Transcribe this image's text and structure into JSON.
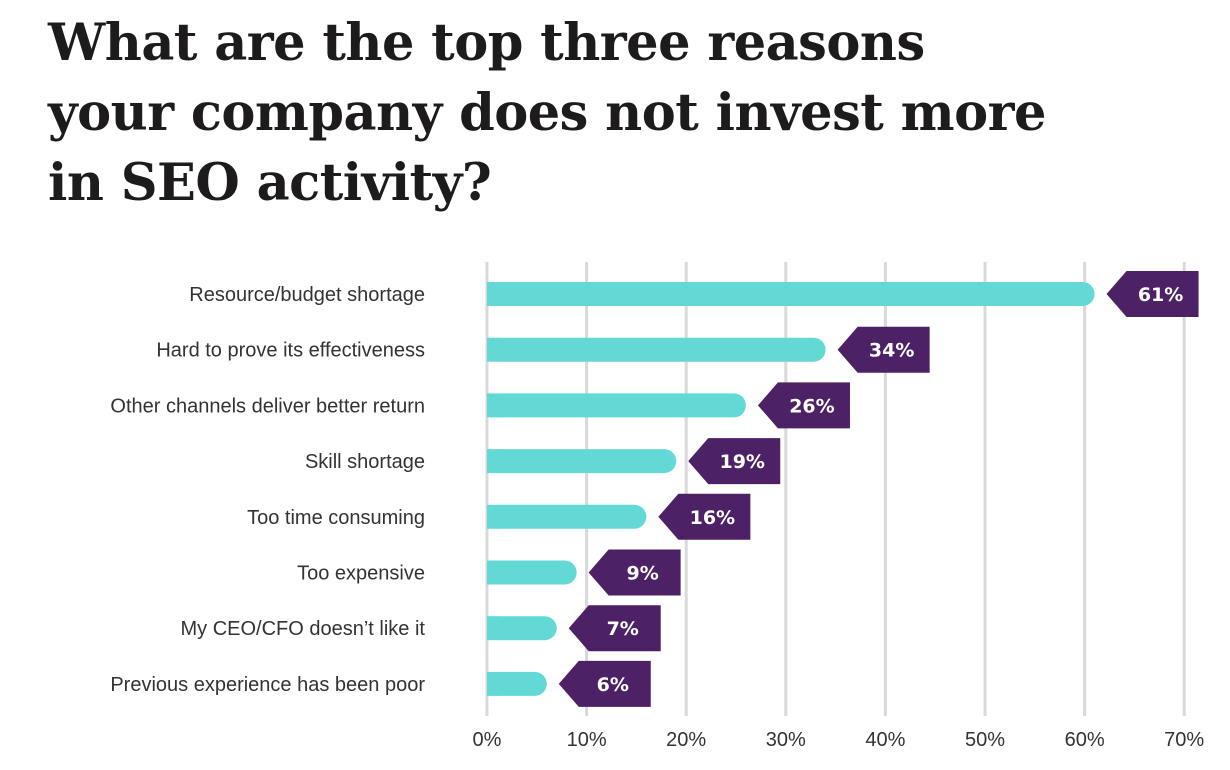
{
  "title": [
    "What are the top three reasons",
    "your company does not invest more",
    "in SEO activity?"
  ],
  "colors": {
    "bar": "#63d9d6",
    "label_bg": "#4d2166",
    "grid": "#d9d9d9",
    "title": "#1e1b1c"
  },
  "chart_data": {
    "type": "bar",
    "orientation": "horizontal",
    "title": "What are the top three reasons your company does not invest more in SEO activity?",
    "categories": [
      "Resource/budget shortage",
      "Hard to prove its effectiveness",
      "Other channels deliver better return",
      "Skill shortage",
      "Too time consuming",
      "Too expensive",
      "My CEO/CFO doesn’t like it",
      "Previous experience has been poor"
    ],
    "values": [
      61,
      34,
      26,
      19,
      16,
      9,
      7,
      6
    ],
    "data_labels": [
      "61%",
      "34%",
      "26%",
      "19%",
      "16%",
      "9%",
      "7%",
      "6%"
    ],
    "xlim": [
      0,
      70
    ],
    "x_ticks": [
      "0%",
      "10%",
      "20%",
      "30%",
      "40%",
      "50%",
      "60%",
      "70%"
    ],
    "grid": true,
    "xlabel": "",
    "ylabel": ""
  }
}
